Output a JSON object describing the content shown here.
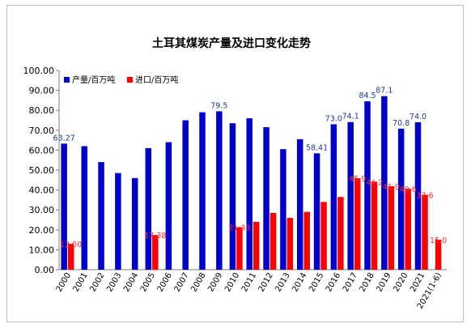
{
  "chart_data": {
    "type": "bar",
    "title": "土耳其煤炭产量及进口变化走势",
    "ylim": [
      0,
      100
    ],
    "yticks": [
      "0.00",
      "10.00",
      "20.00",
      "30.00",
      "40.00",
      "50.00",
      "60.00",
      "70.00",
      "80.00",
      "90.00",
      "100.00"
    ],
    "grid": false,
    "legend_position": "top-left",
    "categories": [
      "2000",
      "2001",
      "2002",
      "2003",
      "2004",
      "2005",
      "2006",
      "2007",
      "2008",
      "2009",
      "2010",
      "2011",
      "2012",
      "2013",
      "2014",
      "2015",
      "2016",
      "2017",
      "2018",
      "2019",
      "2020",
      "2021",
      "2021(1-6)"
    ],
    "series": [
      {
        "name": "产量/百万吨",
        "color": "#0000cc",
        "values": [
          63.27,
          62.0,
          54.0,
          48.5,
          46.0,
          61.0,
          64.0,
          75.0,
          79.0,
          79.5,
          73.5,
          76.0,
          71.5,
          60.5,
          65.5,
          58.41,
          73.0,
          74.1,
          84.5,
          87.1,
          70.8,
          74.0,
          null
        ],
        "labels": [
          "63.27",
          "",
          "",
          "",
          "",
          "",
          "",
          "",
          "",
          "79.5",
          "",
          "",
          "",
          "",
          "",
          "58.41",
          "73.0",
          "74.1",
          "84.5",
          "87.1",
          "70.8",
          "74.0",
          ""
        ]
      },
      {
        "name": "进口/百万吨",
        "color": "#ff0000",
        "values": [
          13.0,
          null,
          null,
          null,
          null,
          17.38,
          null,
          null,
          null,
          null,
          21.33,
          24.0,
          28.5,
          26.0,
          29.0,
          34.0,
          36.5,
          45.9,
          44.2,
          41.9,
          40.6,
          37.6,
          15.0
        ],
        "labels": [
          "13.00",
          "",
          "",
          "",
          "",
          "17.38",
          "",
          "",
          "",
          "",
          "21.33",
          "",
          "",
          "",
          "",
          "",
          "",
          "45.9",
          "44.2",
          "41.9",
          "40.6",
          "37.6",
          "15.0"
        ]
      }
    ]
  }
}
